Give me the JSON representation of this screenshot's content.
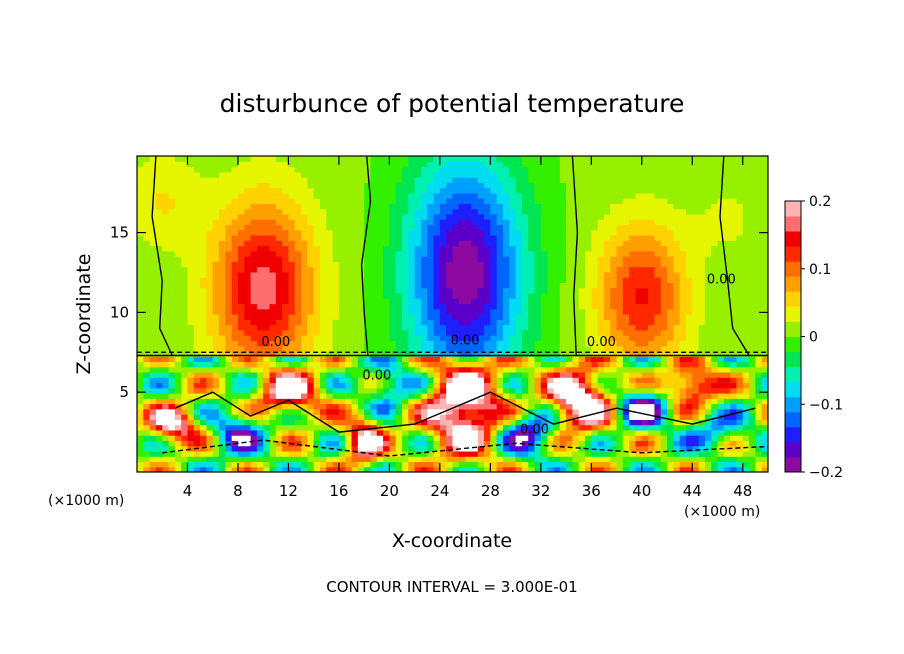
{
  "chart_data": {
    "type": "heatmap",
    "title": "disturbunce of potential temperature",
    "xlabel": "X-coordinate",
    "ylabel": "Z-coordinate",
    "x_unit_note": "(×1000 m)",
    "x_unit_note_right": "(×1000 m)",
    "xlim": [
      0,
      50
    ],
    "ylim": [
      0,
      19.8
    ],
    "x_ticks": [
      4,
      8,
      12,
      16,
      20,
      24,
      28,
      32,
      36,
      40,
      44,
      48
    ],
    "y_ticks": [
      5,
      10,
      15
    ],
    "x_tick_labels": [
      "4",
      "8",
      "12",
      "16",
      "20",
      "24",
      "28",
      "32",
      "36",
      "40",
      "44",
      "48"
    ],
    "y_tick_labels": [
      "5",
      "10",
      "15"
    ],
    "colorbar": {
      "min": -0.2,
      "max": 0.2,
      "tick_values": [
        0.2,
        0.1,
        0,
        -0.1,
        -0.2
      ],
      "tick_labels": [
        "0.2",
        "0.1",
        "0",
        "−0.1",
        "−0.2"
      ],
      "colors": [
        "#8c0aa0",
        "#5a00c8",
        "#1e1eff",
        "#0064ff",
        "#00a0ff",
        "#00dcf0",
        "#00f0b4",
        "#00e650",
        "#32f000",
        "#96f000",
        "#e6f500",
        "#ffd200",
        "#ffa000",
        "#ff6e00",
        "#ff2800",
        "#f00000",
        "#ff6e6e",
        "#ffb4b4"
      ]
    },
    "contour_labels": [
      "0.00",
      "0.00",
      "0.00",
      "0.00",
      "0.00",
      "0.00"
    ],
    "annotation": "CONTOUR INTERVAL = 3.000E-01",
    "fields": {
      "upper_blobs": [
        {
          "x": 10,
          "z": 11.5,
          "value": 0.16,
          "sx": 4.0,
          "sz": 5.5
        },
        {
          "x": 26,
          "z": 12.5,
          "value": -0.2,
          "sx": 4.5,
          "sz": 7.0
        },
        {
          "x": 40,
          "z": 11.0,
          "value": 0.13,
          "sx": 3.5,
          "sz": 4.5
        },
        {
          "x": 2,
          "z": 17.0,
          "value": 0.04,
          "sx": 3.0,
          "sz": 3.0
        },
        {
          "x": 47,
          "z": 16.0,
          "value": 0.02,
          "sx": 3.0,
          "sz": 3.0
        }
      ],
      "lower_blobs": [
        {
          "x": 3,
          "z": 3.0,
          "value": 0.2,
          "sx": 2.0,
          "sz": 1.2
        },
        {
          "x": 8,
          "z": 2.5,
          "value": -0.15,
          "sx": 2.2,
          "sz": 1.4
        },
        {
          "x": 12,
          "z": 5.0,
          "value": 0.2,
          "sx": 2.5,
          "sz": 1.5
        },
        {
          "x": 18,
          "z": 2.0,
          "value": 0.2,
          "sx": 1.5,
          "sz": 1.5
        },
        {
          "x": 20,
          "z": 5.5,
          "value": -0.12,
          "sx": 2.0,
          "sz": 1.5
        },
        {
          "x": 26,
          "z": 4.0,
          "value": 0.25,
          "sx": 3.0,
          "sz": 3.0
        },
        {
          "x": 31,
          "z": 2.5,
          "value": -0.18,
          "sx": 2.5,
          "sz": 1.5
        },
        {
          "x": 35,
          "z": 4.5,
          "value": 0.25,
          "sx": 2.5,
          "sz": 2.0
        },
        {
          "x": 40,
          "z": 4.0,
          "value": -0.2,
          "sx": 2.0,
          "sz": 1.2
        },
        {
          "x": 44,
          "z": 5.5,
          "value": 0.2,
          "sx": 2.0,
          "sz": 1.2
        },
        {
          "x": 46,
          "z": 2.5,
          "value": -0.1,
          "sx": 2.5,
          "sz": 1.2
        }
      ],
      "inversion_z": 7.3
    }
  }
}
